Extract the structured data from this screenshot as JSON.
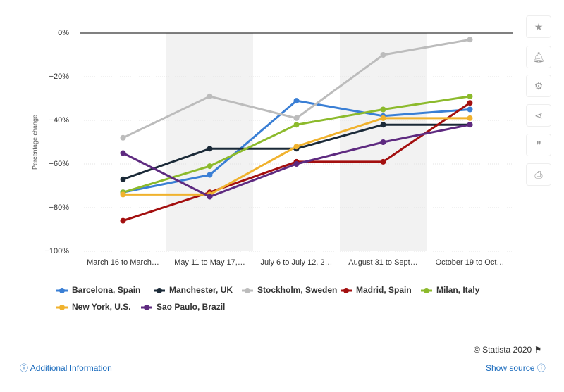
{
  "chart_data": {
    "type": "line",
    "y_label": "Percentage change",
    "categories": [
      "March 16 to March…",
      "May 11 to May 17,…",
      "July 6 to July 12, 2…",
      "August 31 to Sept…",
      "October 19 to Oct…"
    ],
    "ylim": [
      -100,
      0
    ],
    "yticks": [
      {
        "value": 0,
        "label": "0%"
      },
      {
        "value": -20,
        "label": "−20%"
      },
      {
        "value": -40,
        "label": "−40%"
      },
      {
        "value": -60,
        "label": "−60%"
      },
      {
        "value": -80,
        "label": "−80%"
      },
      {
        "value": -100,
        "label": "−100%"
      }
    ],
    "grid": true,
    "series": [
      {
        "name": "Barcelona, Spain",
        "color": "#3a7fd5",
        "values": [
          -73,
          -65,
          -31,
          -38,
          -35
        ]
      },
      {
        "name": "Manchester, UK",
        "color": "#1b2a38",
        "values": [
          -67,
          -53,
          -53,
          -42,
          -42
        ]
      },
      {
        "name": "Stockholm, Sweden",
        "color": "#bcbcbc",
        "values": [
          -48,
          -29,
          -39,
          -10,
          -3
        ]
      },
      {
        "name": "Madrid, Spain",
        "color": "#a30f0f",
        "values": [
          -86,
          -73,
          -59,
          -59,
          -32
        ]
      },
      {
        "name": "Milan, Italy",
        "color": "#8cba2c",
        "values": [
          -73,
          -61,
          -42,
          -35,
          -29
        ]
      },
      {
        "name": "New York, U.S.",
        "color": "#f0b22e",
        "values": [
          -74,
          -74,
          -52,
          -39,
          -39
        ]
      },
      {
        "name": "Sao Paulo, Brazil",
        "color": "#5e2a80",
        "values": [
          -55,
          -75,
          -60,
          -50,
          -42
        ]
      }
    ]
  },
  "footer": {
    "copyright": "© Statista 2020",
    "additional": "Additional Information",
    "source": "Show source"
  }
}
